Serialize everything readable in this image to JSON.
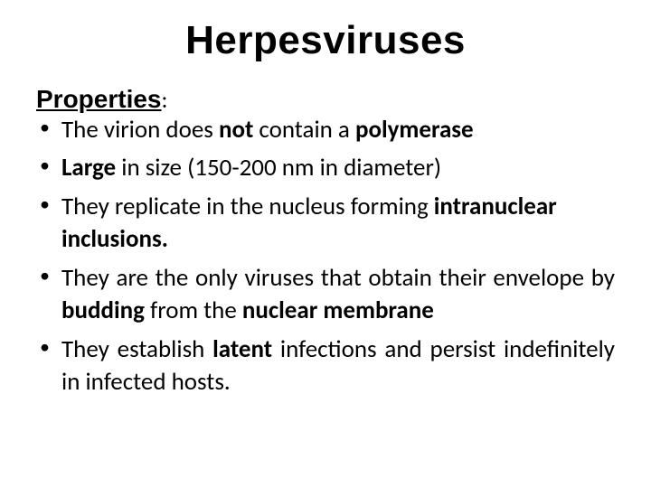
{
  "title": "Herpesviruses",
  "subheading": "Properties",
  "colon": ":",
  "bullets": {
    "b1": {
      "t1": "The virion do",
      "t2": "es ",
      "t3": "not",
      "t4": " contain a ",
      "t5": "polymerase"
    },
    "b2": {
      "t1": "Large",
      "t2": " in size (150-200 nm in diameter)"
    },
    "b3": {
      "t1": "They replicate in the nucleus forming ",
      "t2": "intranuclear inclusions."
    },
    "b4": {
      "t1": "They are the only viruses that obtain their envelope by ",
      "t2": "budding",
      "t3": " from the  ",
      "t4": "nuclear membrane"
    },
    "b5": {
      "t1": "They establish ",
      "t2": "latent",
      "t3": " infections and persist indefinitely in infected hosts."
    }
  },
  "colors": {
    "text": "#000000",
    "background": "#ffffff"
  },
  "fontsizes": {
    "title_pt": 44,
    "subheading_pt": 28,
    "body_pt": 27
  }
}
